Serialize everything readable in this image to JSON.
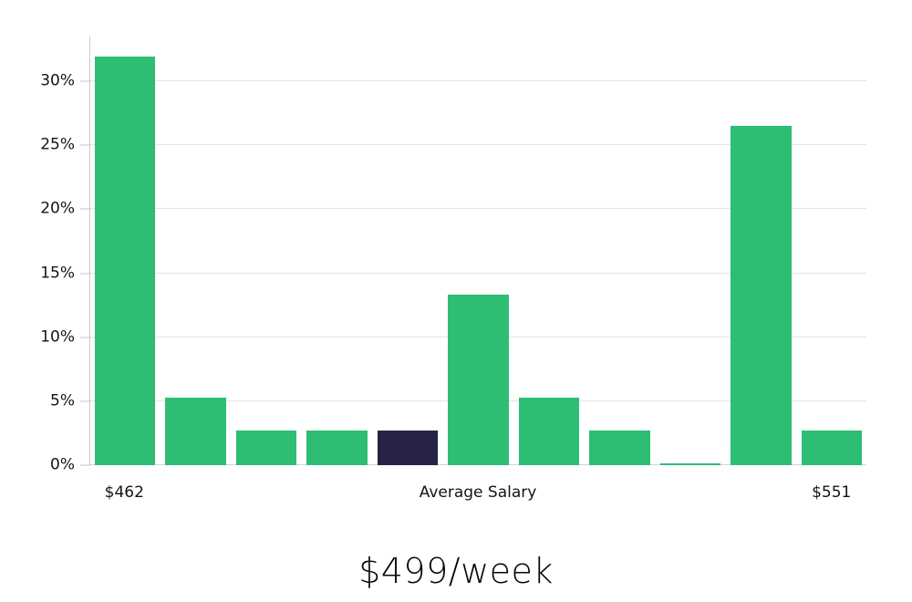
{
  "chart_data": {
    "type": "bar",
    "title": "$499/week",
    "values": [
      31.9,
      5.3,
      2.7,
      2.7,
      2.7,
      13.3,
      5.3,
      2.7,
      0.15,
      26.5,
      2.7
    ],
    "highlighted_bar_index": 4,
    "yticks": [
      0,
      5,
      10,
      15,
      20,
      25,
      30
    ],
    "ytick_suffix": "%",
    "ylim": [
      0,
      33.5
    ],
    "grid": true,
    "legend": false,
    "x_axis_labels": [
      {
        "text": "$462",
        "align_to": "bar-0"
      },
      {
        "text": "Average Salary",
        "align_to": "axis-center"
      },
      {
        "text": "$551",
        "align_to": "bar-10"
      }
    ],
    "colors": {
      "bar": "#2dbe74",
      "highlighted_bar": "#272348",
      "gridline": "#e3e3e3",
      "zero_line": "#d4d4d4",
      "axis_line": "#cbcbcb",
      "tick_mark": "#c6c6c6",
      "label_text": "#141414",
      "title_text": "#070707",
      "background": "#ffffff"
    }
  }
}
